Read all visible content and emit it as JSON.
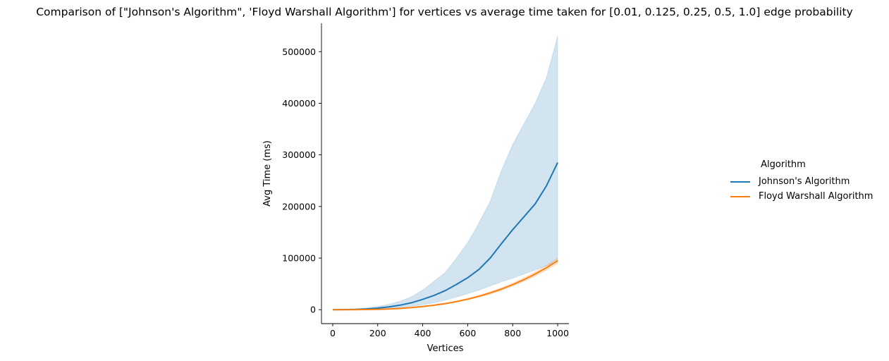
{
  "chart_data": {
    "type": "line",
    "title": "Comparison of [\"Johnson's Algorithm\", 'Floyd Warshall Algorithm'] for vertices vs average time taken for [0.01, 0.125, 0.25, 0.5, 1.0] edge probability",
    "xlabel": "Vertices",
    "ylabel": "Avg Time (ms)",
    "xlim": [
      -50,
      1050
    ],
    "ylim": [
      -27000,
      555000
    ],
    "x_ticks": [
      0,
      200,
      400,
      600,
      800,
      1000
    ],
    "y_ticks": [
      0,
      100000,
      200000,
      300000,
      400000,
      500000
    ],
    "grid": false,
    "legend": {
      "title": "Algorithm",
      "placement": "outside-right"
    },
    "x": [
      0,
      50,
      100,
      150,
      200,
      250,
      300,
      350,
      400,
      450,
      500,
      550,
      600,
      650,
      700,
      750,
      800,
      850,
      900,
      950,
      1000
    ],
    "series": [
      {
        "name": "Johnson's Algorithm",
        "color": "#1f77b4",
        "values": [
          0,
          150,
          600,
          1500,
          3000,
          5500,
          8800,
          13500,
          20000,
          27500,
          37000,
          49000,
          62000,
          78000,
          100000,
          128000,
          155000,
          180000,
          205000,
          240000,
          285000
        ],
        "ci_lower": [
          0,
          50,
          250,
          700,
          1400,
          2500,
          4000,
          6500,
          9500,
          13500,
          18500,
          24500,
          31000,
          38000,
          46000,
          54000,
          61000,
          69000,
          77000,
          85000,
          93000
        ],
        "ci_upper": [
          0,
          400,
          1500,
          3500,
          6500,
          10500,
          16500,
          25000,
          38000,
          55000,
          72000,
          100000,
          130000,
          168000,
          210000,
          270000,
          320000,
          360000,
          400000,
          450000,
          530000
        ]
      },
      {
        "name": "Floyd Warshall Algorithm",
        "color": "#ff7f0e",
        "values": [
          0,
          12,
          95,
          320,
          760,
          1480,
          2560,
          4060,
          6070,
          8640,
          11850,
          15770,
          20470,
          26030,
          32510,
          39990,
          48540,
          58230,
          69130,
          81320,
          94850
        ],
        "ci_lower": [
          0,
          8,
          80,
          280,
          650,
          1300,
          2250,
          3600,
          5450,
          7800,
          10800,
          14500,
          18900,
          24200,
          30300,
          37400,
          45500,
          54700,
          65000,
          76600,
          89300
        ],
        "ci_upper": [
          0,
          16,
          110,
          360,
          870,
          1660,
          2870,
          4520,
          6690,
          9480,
          12900,
          17040,
          22040,
          27860,
          34720,
          42580,
          51580,
          61760,
          73260,
          86040,
          100400
        ]
      }
    ]
  }
}
